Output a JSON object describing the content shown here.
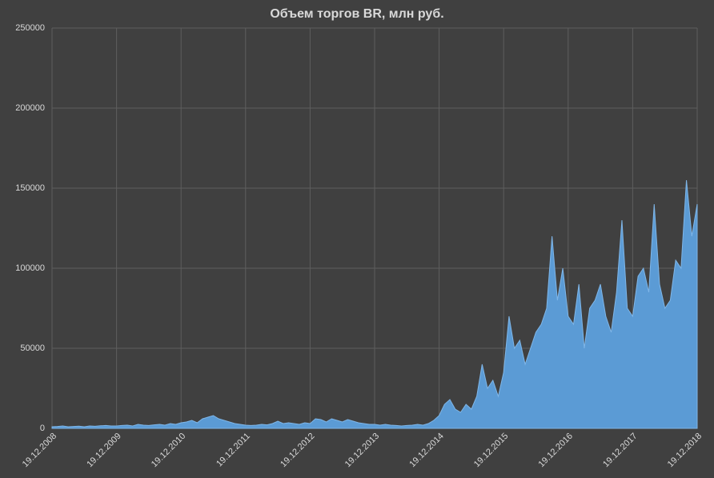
{
  "chart_data": {
    "type": "area",
    "title": "Объем торгов BR,  млн руб.",
    "categories": [
      "19.12.2008",
      null,
      null,
      null,
      null,
      null,
      null,
      null,
      null,
      null,
      null,
      null,
      "19.12.2009",
      null,
      null,
      null,
      null,
      null,
      null,
      null,
      null,
      null,
      null,
      null,
      "19.12.2010",
      null,
      null,
      null,
      null,
      null,
      null,
      null,
      null,
      null,
      null,
      null,
      "19.12.2011",
      null,
      null,
      null,
      null,
      null,
      null,
      null,
      null,
      null,
      null,
      null,
      "19.12.2012",
      null,
      null,
      null,
      null,
      null,
      null,
      null,
      null,
      null,
      null,
      null,
      "19.12.2013",
      null,
      null,
      null,
      null,
      null,
      null,
      null,
      null,
      null,
      null,
      null,
      "19.12.2014",
      null,
      null,
      null,
      null,
      null,
      null,
      null,
      null,
      null,
      null,
      null,
      "19.12.2015",
      null,
      null,
      null,
      null,
      null,
      null,
      null,
      null,
      null,
      null,
      null,
      "19.12.2016",
      null,
      null,
      null,
      null,
      null,
      null,
      null,
      null,
      null,
      null,
      null,
      "19.12.2017",
      null,
      null,
      null,
      null,
      null,
      null,
      null,
      null,
      null,
      null,
      null,
      "19.12.2018"
    ],
    "values": [
      1000,
      1200,
      1500,
      1000,
      1200,
      1400,
      1000,
      1500,
      1300,
      1600,
      1800,
      1500,
      1500,
      1800,
      2000,
      1500,
      2500,
      2000,
      1800,
      2200,
      2500,
      2000,
      3000,
      2500,
      3500,
      4000,
      5000,
      3500,
      6000,
      7000,
      8000,
      6000,
      5000,
      4000,
      3000,
      2500,
      2000,
      1800,
      2000,
      2500,
      2200,
      3000,
      4500,
      3000,
      3500,
      3000,
      2500,
      3500,
      3000,
      6000,
      5500,
      4000,
      6000,
      5000,
      4000,
      5500,
      4500,
      3500,
      3000,
      2500,
      2500,
      2000,
      2500,
      2000,
      1800,
      1500,
      1800,
      2000,
      2500,
      2000,
      3000,
      5000,
      8000,
      15000,
      18000,
      12000,
      10000,
      15000,
      12000,
      20000,
      40000,
      25000,
      30000,
      20000,
      35000,
      70000,
      50000,
      55000,
      40000,
      50000,
      60000,
      65000,
      75000,
      120000,
      80000,
      100000,
      70000,
      65000,
      90000,
      50000,
      75000,
      80000,
      90000,
      70000,
      60000,
      85000,
      130000,
      75000,
      70000,
      95000,
      100000,
      85000,
      140000,
      90000,
      75000,
      80000,
      105000,
      100000,
      155000,
      120000,
      140000
    ],
    "color": "#5b9bd5",
    "ylim": [
      0,
      250000
    ],
    "yticks": [
      0,
      50000,
      100000,
      150000,
      200000,
      250000
    ],
    "grid": true
  }
}
